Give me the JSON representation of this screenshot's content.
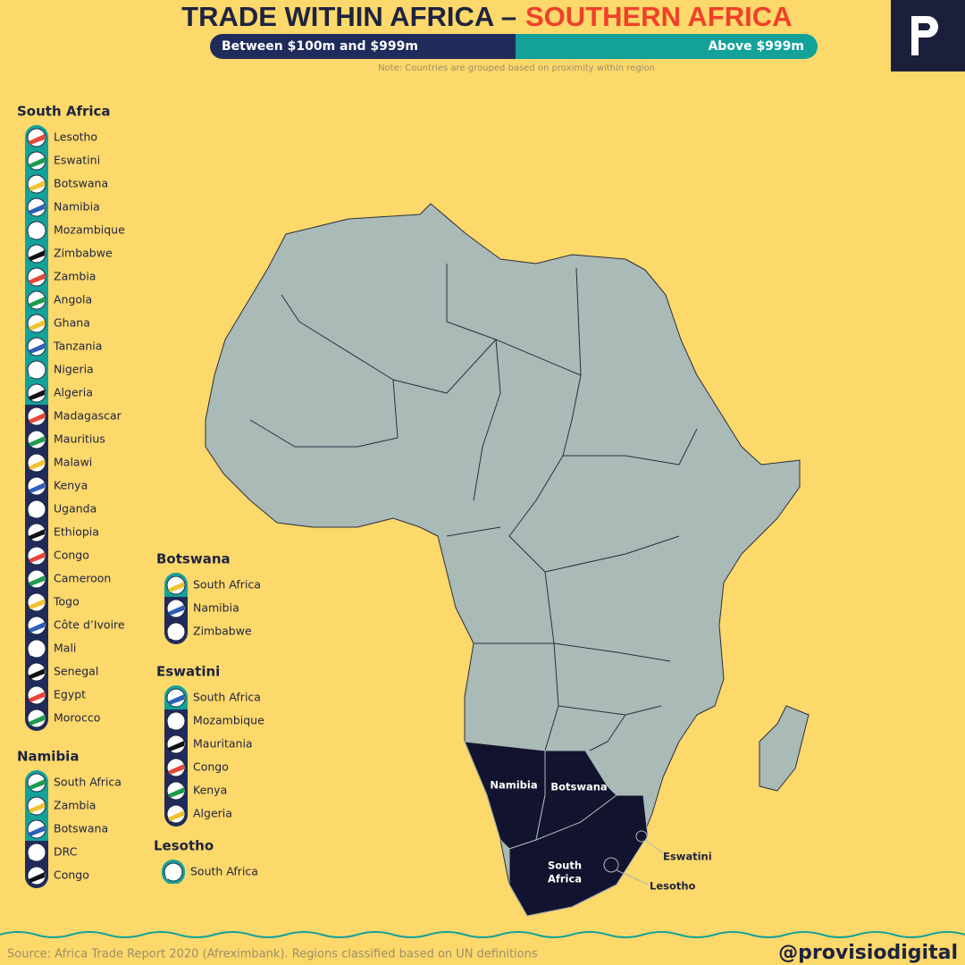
{
  "header": {
    "title_main": "TRADE WITHIN AFRICA –",
    "title_region": "SOUTHERN AFRICA",
    "legend": [
      {
        "label": "Between $100m and $999m",
        "color": "#1f2b5b"
      },
      {
        "label": "Above $999m",
        "color": "#13a19a"
      }
    ],
    "note": "Note: Countries are grouped based on proximity within region"
  },
  "groups": [
    {
      "title": "South Africa",
      "partners": [
        {
          "name": "Lesotho",
          "tier": 1
        },
        {
          "name": "Eswatini",
          "tier": 1
        },
        {
          "name": "Botswana",
          "tier": 1
        },
        {
          "name": "Namibia",
          "tier": 1
        },
        {
          "name": "Mozambique",
          "tier": 1
        },
        {
          "name": "Zimbabwe",
          "tier": 1
        },
        {
          "name": "Zambia",
          "tier": 1
        },
        {
          "name": "Angola",
          "tier": 1
        },
        {
          "name": "Ghana",
          "tier": 1
        },
        {
          "name": "Tanzania",
          "tier": 1
        },
        {
          "name": "Nigeria",
          "tier": 1
        },
        {
          "name": "Algeria",
          "tier": 1
        },
        {
          "name": "Madagascar",
          "tier": 0
        },
        {
          "name": "Mauritius",
          "tier": 0
        },
        {
          "name": "Malawi",
          "tier": 0
        },
        {
          "name": "Kenya",
          "tier": 0
        },
        {
          "name": "Uganda",
          "tier": 0
        },
        {
          "name": "Ethiopia",
          "tier": 0
        },
        {
          "name": "Congo",
          "tier": 0
        },
        {
          "name": "Cameroon",
          "tier": 0
        },
        {
          "name": "Togo",
          "tier": 0
        },
        {
          "name": "Côte d’Ivoire",
          "tier": 0
        },
        {
          "name": "Mali",
          "tier": 0
        },
        {
          "name": "Senegal",
          "tier": 0
        },
        {
          "name": "Egypt",
          "tier": 0
        },
        {
          "name": "Morocco",
          "tier": 0
        }
      ]
    },
    {
      "title": "Namibia",
      "partners": [
        {
          "name": "South Africa",
          "tier": 1
        },
        {
          "name": "Zambia",
          "tier": 1
        },
        {
          "name": "Botswana",
          "tier": 1
        },
        {
          "name": "DRC",
          "tier": 0
        },
        {
          "name": "Congo",
          "tier": 0
        }
      ]
    },
    {
      "title": "Botswana",
      "partners": [
        {
          "name": "South Africa",
          "tier": 1
        },
        {
          "name": "Namibia",
          "tier": 0
        },
        {
          "name": "Zimbabwe",
          "tier": 0
        }
      ]
    },
    {
      "title": "Eswatini",
      "partners": [
        {
          "name": "South Africa",
          "tier": 1
        },
        {
          "name": "Mozambique",
          "tier": 0
        },
        {
          "name": "Mauritania",
          "tier": 0
        },
        {
          "name": "Congo",
          "tier": 0
        },
        {
          "name": "Kenya",
          "tier": 0
        },
        {
          "name": "Algeria",
          "tier": 0
        }
      ]
    },
    {
      "title": "Lesotho",
      "partners": [
        {
          "name": "South Africa",
          "tier": 1
        }
      ]
    }
  ],
  "map_labels": {
    "namibia": "Namibia",
    "botswana": "Botswana",
    "south_africa_1": "South",
    "south_africa_2": "Africa",
    "eswatini": "Eswatini",
    "lesotho": "Lesotho"
  },
  "footer": {
    "source": "Source: Africa Trade Report 2020 (Afreximbank). Regions classified based on UN definitions",
    "handle": "@provisiodigital"
  }
}
